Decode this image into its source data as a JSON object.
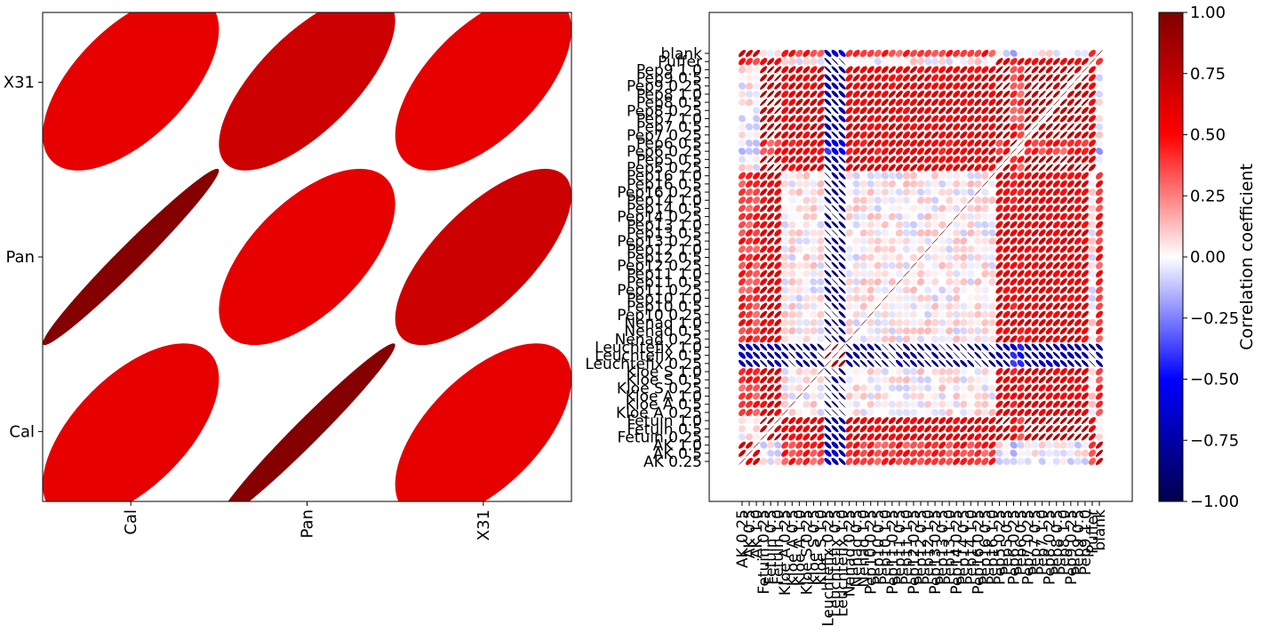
{
  "chart_data": [
    {
      "type": "heatmap",
      "mark": "ellipse",
      "rows_bottom_to_top": [
        "Cal",
        "Pan",
        "X31"
      ],
      "columns": [
        "Cal",
        "Pan",
        "X31"
      ],
      "values": [
        [
          0.6,
          0.98,
          0.6
        ],
        [
          0.98,
          0.6,
          0.7
        ],
        [
          0.6,
          0.7,
          0.6
        ]
      ]
    },
    {
      "type": "heatmap",
      "mark": "ellipse",
      "clim": [
        -1,
        1
      ],
      "colormap": "seismic",
      "labels": [
        "AK 0.25",
        "AK 0.5",
        "AK 1.0",
        "Fetuin 0.25",
        "Fetuin 0.5",
        "Fetuin 1.0",
        "Kloe A 0.25",
        "Kloe A 0.5",
        "Kloe A 1.0",
        "Kloe S 0.25",
        "Kloe S 0.5",
        "Kloe S 1.0",
        "Leuchtefix 0.25",
        "Leuchtefix 0.5",
        "Leuchtefix 1.0",
        "Nenad 0.25",
        "Nenad 0.5",
        "Nenad 1.0",
        "Pep10 0.25",
        "Pep10 0.5",
        "Pep10 1.0",
        "Pep11 0.25",
        "Pep11 0.5",
        "Pep11 1.0",
        "Pep12 0.25",
        "Pep12 0.5",
        "Pep12 1.0",
        "Pep13 0.25",
        "Pep13 0.5",
        "Pep13 1.0",
        "Pep14 0.25",
        "Pep14 0.5",
        "Pep14 1.0",
        "Pep16 0.25",
        "Pep16 0.5",
        "Pep16 1.0",
        "Pep5 0.25",
        "Pep5 0.5",
        "Pep6 0.25",
        "Pep6 0.5",
        "Pep7 0.25",
        "Pep7 0.5",
        "Pep7 1.0",
        "Pep8 0.25",
        "Pep8 0.5",
        "Pep8 1.0",
        "Pep9 0.25",
        "Pep9 0.5",
        "Pep9 1.0",
        "Puffer",
        "blank"
      ],
      "group_of_label": [
        0,
        0,
        0,
        1,
        1,
        1,
        2,
        2,
        2,
        2,
        2,
        2,
        3,
        3,
        3,
        2,
        2,
        2,
        2,
        2,
        2,
        2,
        2,
        2,
        2,
        2,
        2,
        2,
        2,
        2,
        2,
        2,
        2,
        2,
        2,
        2,
        1,
        1,
        4,
        4,
        1,
        1,
        1,
        1,
        1,
        1,
        1,
        1,
        1,
        2,
        0
      ],
      "group_effects": [
        [
          0.7,
          0.0,
          0.4,
          -0.7,
          -0.1
        ],
        [
          0.0,
          0.8,
          0.6,
          -0.8,
          0.4
        ],
        [
          0.4,
          0.6,
          0.02,
          -0.9,
          0.55
        ],
        [
          -0.7,
          -0.8,
          -0.9,
          0.9,
          -0.5
        ],
        [
          -0.1,
          0.4,
          0.55,
          -0.5,
          0.9
        ]
      ]
    },
    {
      "type": "colorbar",
      "label": "Correlation coefficient",
      "ticks": [
        "1.00",
        "0.75",
        "0.50",
        "0.25",
        "0.00",
        "−0.25",
        "−0.50",
        "−0.75",
        "−1.00"
      ]
    }
  ]
}
